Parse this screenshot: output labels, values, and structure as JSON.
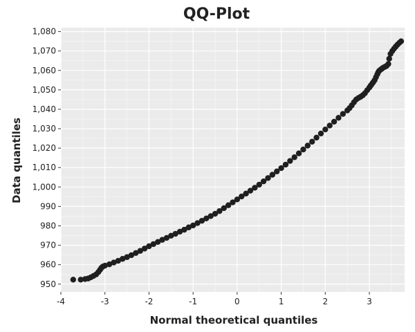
{
  "chart_data": {
    "type": "scatter",
    "title": "QQ-Plot",
    "xlabel": "Normal theoretical quantiles",
    "ylabel": "Data quantiles",
    "xlim": [
      -4,
      3.8
    ],
    "ylim": [
      946,
      1082
    ],
    "xticks": [
      -4,
      -3,
      -2,
      -1,
      0,
      1,
      2,
      3
    ],
    "xtick_labels": [
      "-4",
      "-3",
      "-2",
      "-1",
      "0",
      "1",
      "2",
      "3"
    ],
    "yticks": [
      950,
      960,
      970,
      980,
      990,
      1000,
      1010,
      1020,
      1030,
      1040,
      1050,
      1060,
      1070,
      1080
    ],
    "ytick_labels": [
      "950",
      "960",
      "970",
      "980",
      "990",
      "1,000",
      "1,010",
      "1,020",
      "1,030",
      "1,040",
      "1,050",
      "1,060",
      "1,070",
      "1,080"
    ],
    "grid": true,
    "legend": "none",
    "colors": {
      "background": "#ebebeb",
      "grid": "#ffffff",
      "point": "#1f1f1f"
    },
    "series": [
      {
        "points": [
          [
            -3.72,
            952.3
          ],
          [
            -3.55,
            952.3
          ],
          [
            -3.45,
            952.6
          ],
          [
            -3.38,
            952.9
          ],
          [
            -3.32,
            953.5
          ],
          [
            -3.26,
            954.2
          ],
          [
            -3.2,
            955.0
          ],
          [
            -3.15,
            956.2
          ],
          [
            -3.11,
            957.4
          ],
          [
            -3.08,
            958.4
          ],
          [
            -3.05,
            959.0
          ],
          [
            -3.0,
            959.5
          ],
          [
            -2.9,
            960.2
          ],
          [
            -2.8,
            961.1
          ],
          [
            -2.7,
            962.0
          ],
          [
            -2.6,
            963.0
          ],
          [
            -2.5,
            963.9
          ],
          [
            -2.4,
            964.9
          ],
          [
            -2.3,
            966.0
          ],
          [
            -2.2,
            967.1
          ],
          [
            -2.1,
            968.3
          ],
          [
            -2.0,
            969.5
          ],
          [
            -1.9,
            970.6
          ],
          [
            -1.8,
            971.7
          ],
          [
            -1.7,
            972.8
          ],
          [
            -1.6,
            973.8
          ],
          [
            -1.5,
            974.9
          ],
          [
            -1.4,
            975.9
          ],
          [
            -1.3,
            977.0
          ],
          [
            -1.2,
            978.0
          ],
          [
            -1.1,
            979.2
          ],
          [
            -1.0,
            980.2
          ],
          [
            -0.9,
            981.4
          ],
          [
            -0.8,
            982.6
          ],
          [
            -0.7,
            983.8
          ],
          [
            -0.6,
            985.0
          ],
          [
            -0.5,
            986.2
          ],
          [
            -0.4,
            987.6
          ],
          [
            -0.3,
            989.1
          ],
          [
            -0.2,
            990.6
          ],
          [
            -0.1,
            992.1
          ],
          [
            0.0,
            993.6
          ],
          [
            0.1,
            995.1
          ],
          [
            0.2,
            996.6
          ],
          [
            0.3,
            998.1
          ],
          [
            0.4,
            999.6
          ],
          [
            0.5,
            1001.2
          ],
          [
            0.6,
            1002.9
          ],
          [
            0.7,
            1004.6
          ],
          [
            0.8,
            1006.3
          ],
          [
            0.9,
            1008.0
          ],
          [
            1.0,
            1009.7
          ],
          [
            1.1,
            1011.5
          ],
          [
            1.2,
            1013.4
          ],
          [
            1.3,
            1015.3
          ],
          [
            1.4,
            1017.3
          ],
          [
            1.5,
            1019.3
          ],
          [
            1.6,
            1021.3
          ],
          [
            1.7,
            1023.3
          ],
          [
            1.8,
            1025.4
          ],
          [
            1.9,
            1027.5
          ],
          [
            2.0,
            1029.6
          ],
          [
            2.1,
            1031.6
          ],
          [
            2.2,
            1033.6
          ],
          [
            2.3,
            1035.6
          ],
          [
            2.4,
            1037.6
          ],
          [
            2.5,
            1039.4
          ],
          [
            2.55,
            1040.6
          ],
          [
            2.6,
            1042.0
          ],
          [
            2.65,
            1043.6
          ],
          [
            2.7,
            1045.0
          ],
          [
            2.75,
            1045.8
          ],
          [
            2.8,
            1046.4
          ],
          [
            2.85,
            1047.2
          ],
          [
            2.9,
            1048.3
          ],
          [
            2.95,
            1049.8
          ],
          [
            3.0,
            1051.2
          ],
          [
            3.03,
            1052.2
          ],
          [
            3.06,
            1053.1
          ],
          [
            3.09,
            1054.0
          ],
          [
            3.12,
            1055.0
          ],
          [
            3.15,
            1056.5
          ],
          [
            3.18,
            1058.0
          ],
          [
            3.2,
            1059.0
          ],
          [
            3.22,
            1059.7
          ],
          [
            3.25,
            1060.3
          ],
          [
            3.28,
            1060.8
          ],
          [
            3.3,
            1061.2
          ],
          [
            3.33,
            1061.6
          ],
          [
            3.36,
            1061.9
          ],
          [
            3.39,
            1062.3
          ],
          [
            3.43,
            1063.3
          ],
          [
            3.45,
            1066.0
          ],
          [
            3.48,
            1068.5
          ],
          [
            3.52,
            1070.0
          ],
          [
            3.56,
            1071.2
          ],
          [
            3.6,
            1072.3
          ],
          [
            3.64,
            1073.3
          ],
          [
            3.68,
            1074.2
          ],
          [
            3.72,
            1075.0
          ]
        ]
      }
    ]
  }
}
